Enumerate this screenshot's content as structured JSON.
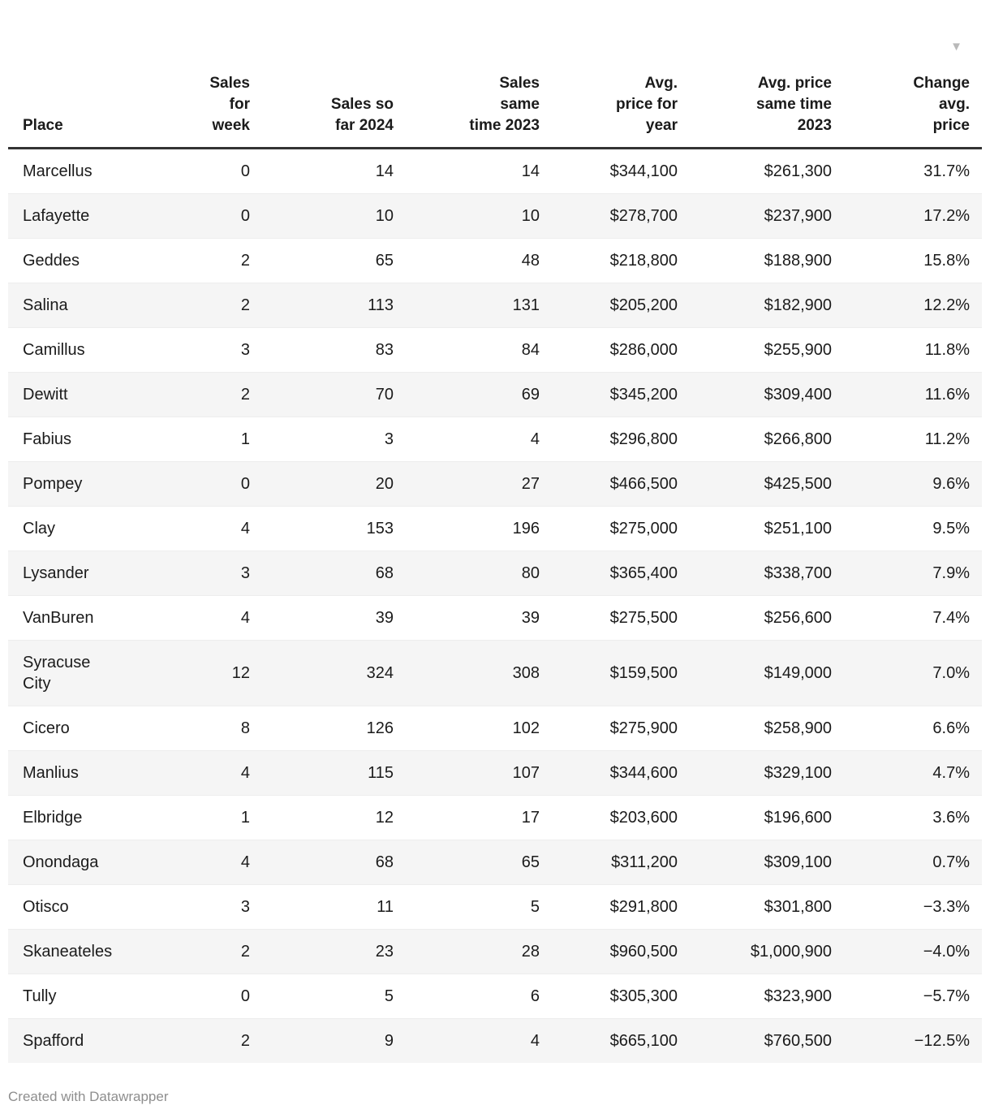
{
  "chart_data": {
    "type": "table",
    "sort": {
      "column": "change_avg_price",
      "direction": "descending"
    },
    "columns": [
      {
        "key": "place",
        "label": "Place"
      },
      {
        "key": "sales_for_week",
        "label": "Sales\nfor\nweek"
      },
      {
        "key": "sales_so_far_2024",
        "label": "Sales so\nfar 2024"
      },
      {
        "key": "sales_same_time_2023",
        "label": "Sales\nsame\ntime 2023"
      },
      {
        "key": "avg_price_for_year",
        "label": "Avg.\nprice for\nyear"
      },
      {
        "key": "avg_price_same_time_2023",
        "label": "Avg. price\nsame time\n2023"
      },
      {
        "key": "change_avg_price",
        "label": "Change\navg.\nprice",
        "sorted": "desc"
      }
    ],
    "rows": [
      [
        "Marcellus",
        "0",
        "14",
        "14",
        "$344,100",
        "$261,300",
        "31.7%"
      ],
      [
        "Lafayette",
        "0",
        "10",
        "10",
        "$278,700",
        "$237,900",
        "17.2%"
      ],
      [
        "Geddes",
        "2",
        "65",
        "48",
        "$218,800",
        "$188,900",
        "15.8%"
      ],
      [
        "Salina",
        "2",
        "113",
        "131",
        "$205,200",
        "$182,900",
        "12.2%"
      ],
      [
        "Camillus",
        "3",
        "83",
        "84",
        "$286,000",
        "$255,900",
        "11.8%"
      ],
      [
        "Dewitt",
        "2",
        "70",
        "69",
        "$345,200",
        "$309,400",
        "11.6%"
      ],
      [
        "Fabius",
        "1",
        "3",
        "4",
        "$296,800",
        "$266,800",
        "11.2%"
      ],
      [
        "Pompey",
        "0",
        "20",
        "27",
        "$466,500",
        "$425,500",
        "9.6%"
      ],
      [
        "Clay",
        "4",
        "153",
        "196",
        "$275,000",
        "$251,100",
        "9.5%"
      ],
      [
        "Lysander",
        "3",
        "68",
        "80",
        "$365,400",
        "$338,700",
        "7.9%"
      ],
      [
        "VanBuren",
        "4",
        "39",
        "39",
        "$275,500",
        "$256,600",
        "7.4%"
      ],
      [
        "Syracuse City",
        "12",
        "324",
        "308",
        "$159,500",
        "$149,000",
        "7.0%"
      ],
      [
        "Cicero",
        "8",
        "126",
        "102",
        "$275,900",
        "$258,900",
        "6.6%"
      ],
      [
        "Manlius",
        "4",
        "115",
        "107",
        "$344,600",
        "$329,100",
        "4.7%"
      ],
      [
        "Elbridge",
        "1",
        "12",
        "17",
        "$203,600",
        "$196,600",
        "3.6%"
      ],
      [
        "Onondaga",
        "4",
        "68",
        "65",
        "$311,200",
        "$309,100",
        "0.7%"
      ],
      [
        "Otisco",
        "3",
        "11",
        "5",
        "$291,800",
        "$301,800",
        "−3.3%"
      ],
      [
        "Skaneateles",
        "2",
        "23",
        "28",
        "$960,500",
        "$1,000,900",
        "−4.0%"
      ],
      [
        "Tully",
        "0",
        "5",
        "6",
        "$305,300",
        "$323,900",
        "−5.7%"
      ],
      [
        "Spafford",
        "2",
        "9",
        "4",
        "$665,100",
        "$760,500",
        "−12.5%"
      ]
    ]
  },
  "icons": {
    "sort_desc": "▼"
  },
  "footer": {
    "credit": "Created with Datawrapper"
  },
  "colors": {
    "text": "#1b1b1b",
    "stripe": "#f5f5f5",
    "header_border": "#333333",
    "row_divider": "#ededed",
    "sort_arrow": "#b9b9b9",
    "footer_text": "#8e8e8e"
  }
}
